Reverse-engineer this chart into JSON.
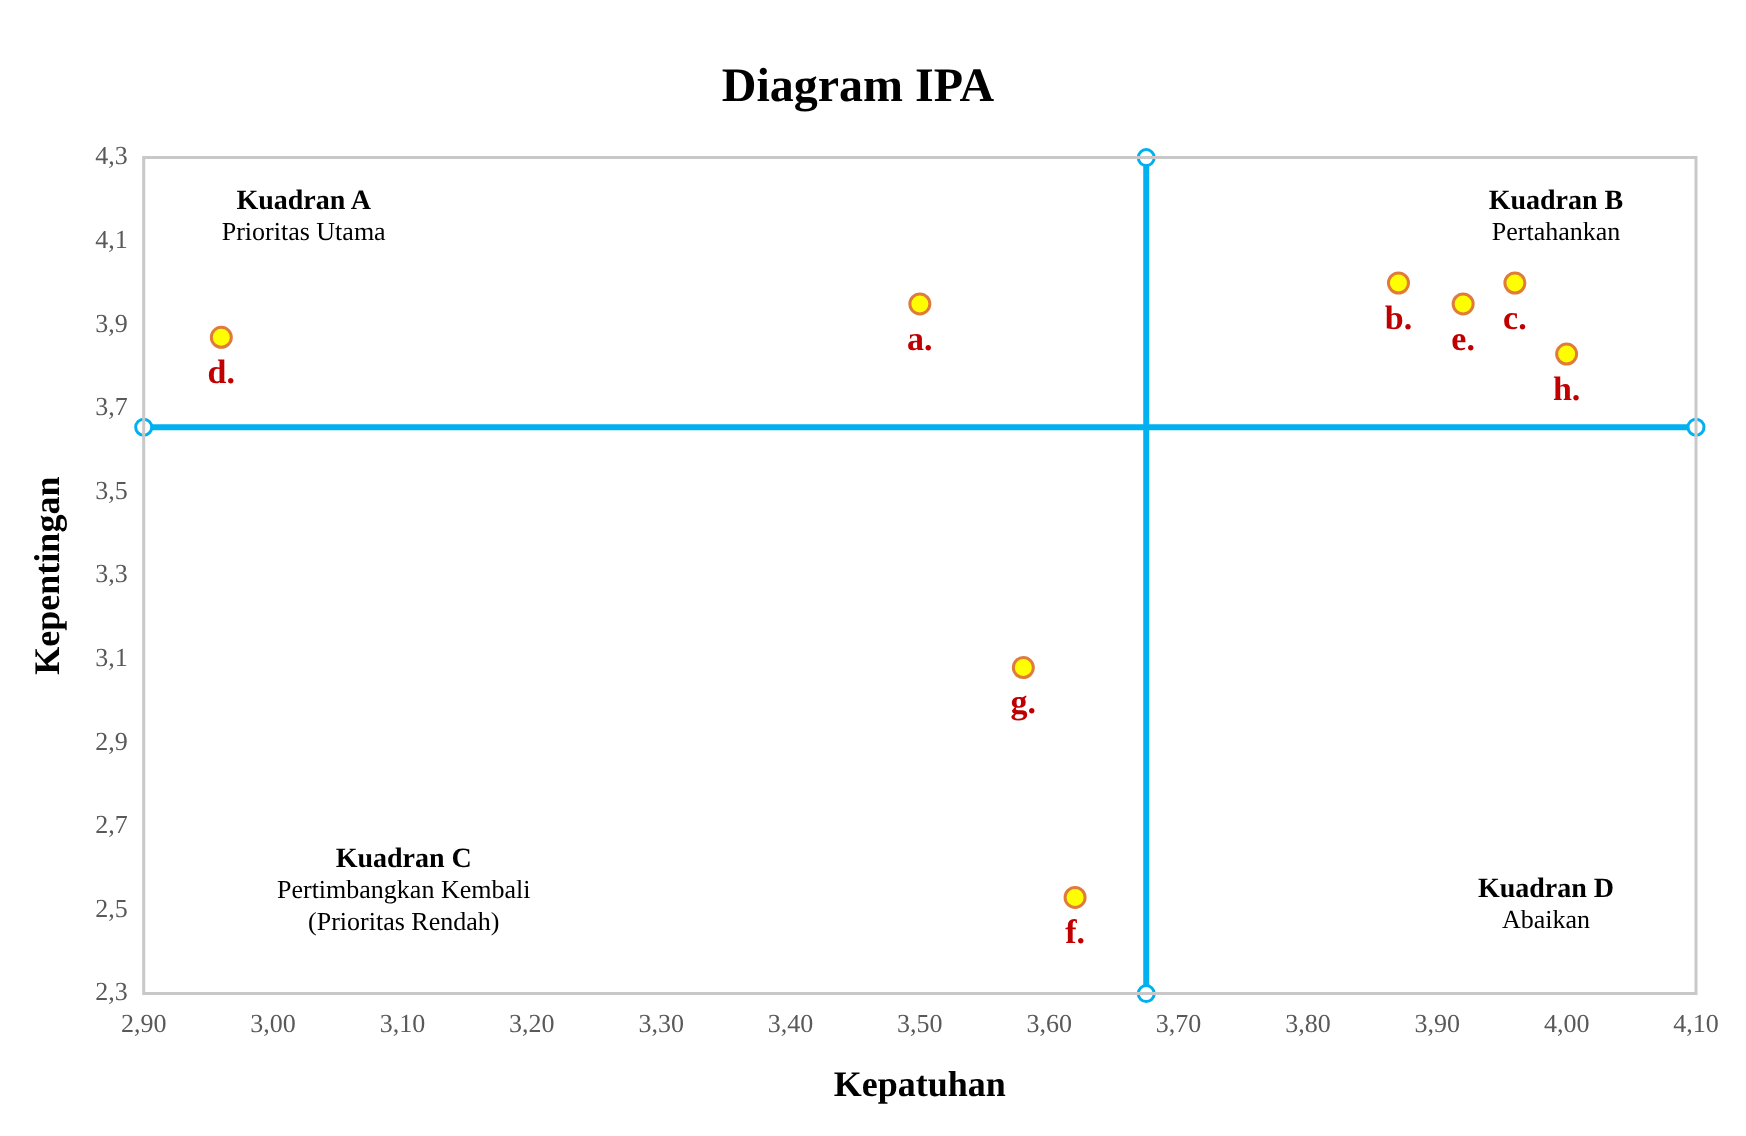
{
  "chart_data": {
    "type": "scatter",
    "title": "Diagram IPA",
    "xlabel": "Kepatuhan",
    "ylabel": "Kepentingan",
    "series": [
      {
        "color": "#ffff00",
        "x": [
          3.5,
          3.87,
          3.96,
          2.96,
          3.92,
          3.62,
          3.58,
          4.0
        ],
        "values": [
          3.95,
          4.0,
          4.0,
          3.87,
          3.95,
          2.53,
          3.08,
          3.83
        ]
      },
      {
        "type": "line",
        "color": "#00b0f0",
        "x": [
          3.675,
          3.675
        ],
        "values": [
          2.3,
          4.3
        ]
      },
      {
        "type": "line",
        "color": "#00b0f0",
        "x": [
          2.9,
          4.1
        ],
        "values": [
          3.655,
          3.655
        ]
      }
    ],
    "marker": "circle",
    "grid": false,
    "legend": false,
    "xlim": [
      2.9,
      4.1
    ],
    "xticks": [
      {
        "value": 2.9,
        "label": "2,90"
      },
      {
        "value": 3.0,
        "label": "3,00"
      },
      {
        "value": 3.1,
        "label": "3,10"
      },
      {
        "value": 3.2,
        "label": "3,20"
      },
      {
        "value": 3.3,
        "label": "3,30"
      },
      {
        "value": 3.4,
        "label": "3,40"
      },
      {
        "value": 3.5,
        "label": "3,50"
      },
      {
        "value": 3.6,
        "label": "3,60"
      },
      {
        "value": 3.7,
        "label": "3,70"
      },
      {
        "value": 3.8,
        "label": "3,80"
      },
      {
        "value": 3.9,
        "label": "3,90"
      },
      {
        "value": 4.0,
        "label": "4,00"
      },
      {
        "value": 4.1,
        "label": "4,10"
      }
    ],
    "ylim": [
      2.3,
      4.3
    ],
    "yticks": [
      {
        "value": 2.3,
        "label": "2,3"
      },
      {
        "value": 2.5,
        "label": "2,5"
      },
      {
        "value": 2.7,
        "label": "2,7"
      },
      {
        "value": 2.9,
        "label": "2,9"
      },
      {
        "value": 3.1,
        "label": "3,1"
      },
      {
        "value": 3.3,
        "label": "3,3"
      },
      {
        "value": 3.5,
        "label": "3,5"
      },
      {
        "value": 3.7,
        "label": "3,7"
      },
      {
        "value": 3.9,
        "label": "3,9"
      },
      {
        "value": 4.1,
        "label": "4,1"
      },
      {
        "value": 4.3,
        "label": "4,3"
      }
    ],
    "annotations": [
      {
        "text": "a.",
        "x": 3.5,
        "y": 3.95
      },
      {
        "text": "b.",
        "x": 3.87,
        "y": 4.0
      },
      {
        "text": "c.",
        "x": 3.96,
        "y": 4.0
      },
      {
        "text": "d.",
        "x": 2.96,
        "y": 3.87
      },
      {
        "text": "e.",
        "x": 3.92,
        "y": 3.95
      },
      {
        "text": "f.",
        "x": 3.62,
        "y": 2.53
      },
      {
        "text": "g.",
        "x": 3.58,
        "y": 3.08
      },
      {
        "text": "h.",
        "x": 4.0,
        "y": 3.83
      },
      "Kuadran A\nPrioritas Utama",
      "Kuadran B\nPertahankan",
      "Kuadran C\nPertimbangkan Kembali\n(Prioritas Rendah)",
      "Kuadran D\nAbaikan"
    ]
  }
}
